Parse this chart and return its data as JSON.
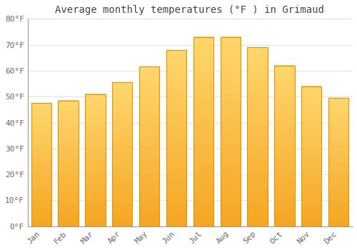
{
  "title": "Average monthly temperatures (°F ) in Grimaud",
  "months": [
    "Jan",
    "Feb",
    "Mar",
    "Apr",
    "May",
    "Jun",
    "Jul",
    "Aug",
    "Sep",
    "Oct",
    "Nov",
    "Dec"
  ],
  "values": [
    47.5,
    48.5,
    51.0,
    55.5,
    61.5,
    68.0,
    73.0,
    73.0,
    69.0,
    62.0,
    54.0,
    49.5
  ],
  "bar_color_bottom": "#F5A623",
  "bar_color_top": "#FFD76E",
  "bar_edge_color": "#E09400",
  "background_color": "#FFFFFF",
  "grid_color": "#DDDDDD",
  "text_color": "#666666",
  "spine_color": "#999999",
  "ylim": [
    0,
    80
  ],
  "yticks": [
    0,
    10,
    20,
    30,
    40,
    50,
    60,
    70,
    80
  ],
  "title_fontsize": 10,
  "tick_fontsize": 8
}
